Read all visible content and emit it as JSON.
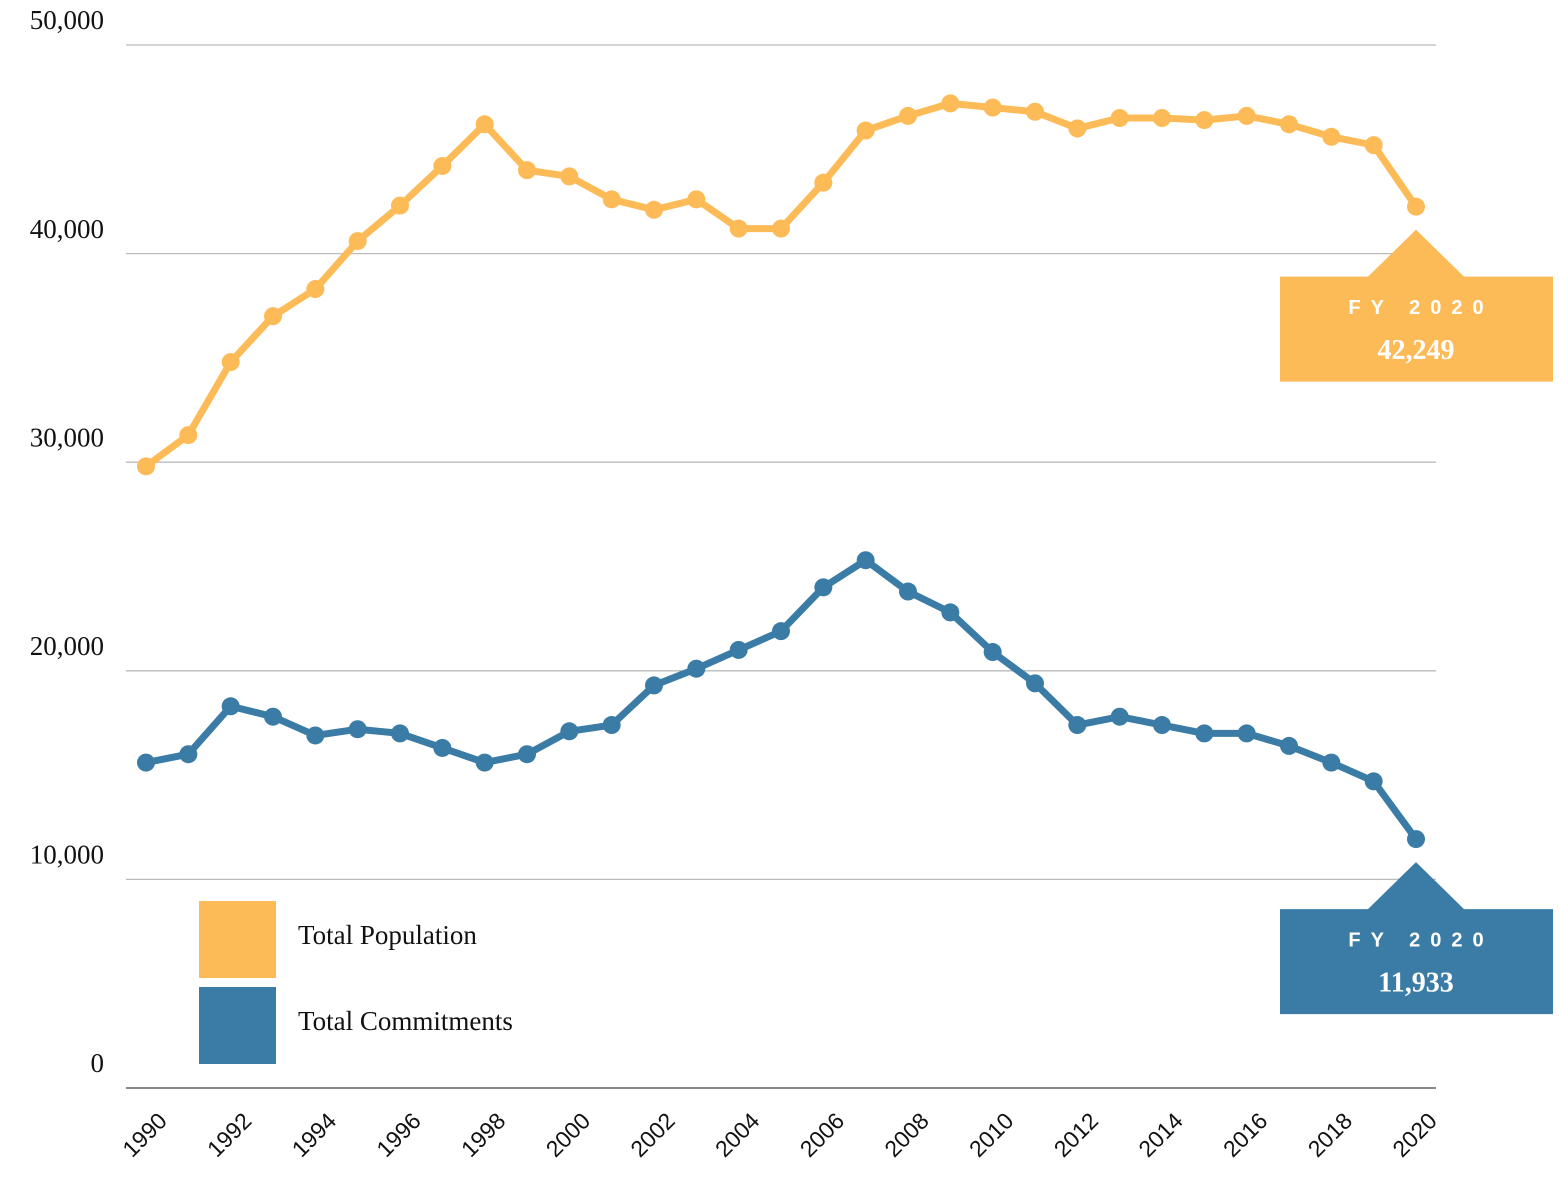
{
  "chart_data": {
    "type": "line",
    "x": [
      1990,
      1991,
      1992,
      1993,
      1994,
      1995,
      1996,
      1997,
      1998,
      1999,
      2000,
      2001,
      2002,
      2003,
      2004,
      2005,
      2006,
      2007,
      2008,
      2009,
      2010,
      2011,
      2012,
      2013,
      2014,
      2015,
      2016,
      2017,
      2018,
      2019,
      2020
    ],
    "series": [
      {
        "name": "Total Population",
        "color": "#fdbb57",
        "values": [
          29800,
          31300,
          34800,
          37000,
          38300,
          40600,
          42300,
          44200,
          46200,
          44000,
          43700,
          42600,
          42100,
          42600,
          41200,
          41200,
          43400,
          45900,
          46600,
          47200,
          47000,
          46800,
          46000,
          46500,
          46500,
          46400,
          46600,
          46200,
          45600,
          45200,
          42249
        ]
      },
      {
        "name": "Total Commitments",
        "color": "#3a7ca5",
        "values": [
          15600,
          16000,
          18300,
          17800,
          16900,
          17200,
          17000,
          16300,
          15600,
          16000,
          17100,
          17400,
          19300,
          20100,
          21000,
          21900,
          24000,
          25300,
          23800,
          22800,
          20900,
          19400,
          17400,
          17800,
          17400,
          17000,
          17000,
          16400,
          15600,
          14700,
          11933
        ]
      }
    ],
    "annotations": [
      {
        "text": "FY 2020",
        "value_label": "42,249"
      },
      {
        "text": "FY 2020",
        "value_label": "11,933"
      }
    ],
    "xlim": [
      1990,
      2020
    ],
    "xticks": [
      1990,
      1992,
      1994,
      1996,
      1998,
      2000,
      2002,
      2004,
      2006,
      2008,
      2010,
      2012,
      2014,
      2016,
      2018,
      2020
    ],
    "ylim": [
      0,
      50000
    ],
    "yticks": [
      {
        "value": 0,
        "label": "0"
      },
      {
        "value": 10000,
        "label": "10,000"
      },
      {
        "value": 20000,
        "label": "20,000"
      },
      {
        "value": 30000,
        "label": "30,000"
      },
      {
        "value": 40000,
        "label": "40,000"
      },
      {
        "value": 50000,
        "label": "50,000"
      }
    ],
    "grid": true,
    "legend": "lower left"
  }
}
